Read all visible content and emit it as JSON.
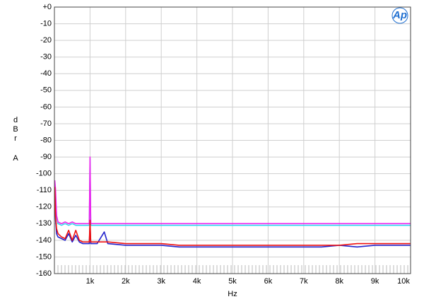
{
  "chart_data": {
    "type": "line",
    "ylabel": "dBr",
    "ylabel_unit": "A",
    "xlabel": "Hz",
    "logo": "Ap",
    "x": [
      10,
      30,
      60,
      100,
      200,
      300,
      400,
      500,
      600,
      700,
      800,
      900,
      980,
      1000,
      1020,
      1200,
      1400,
      1500,
      2000,
      2500,
      3000,
      3500,
      4000,
      4500,
      5000,
      5500,
      6000,
      6500,
      7000,
      7500,
      8000,
      8500,
      9000,
      9500,
      10000
    ],
    "series": [
      {
        "name": "cyan",
        "color": "#33d6f0",
        "values": [
          -106,
          -112,
          -126,
          -130,
          -131,
          -130,
          -131,
          -130,
          -131,
          -131,
          -131,
          -131,
          -131,
          -91,
          -131,
          -131,
          -131,
          -131,
          -131,
          -131,
          -131,
          -131,
          -131,
          -131,
          -131,
          -131,
          -131,
          -131,
          -131,
          -131,
          -131,
          -131,
          -131,
          -131,
          -131
        ]
      },
      {
        "name": "magenta",
        "color": "#ee22ee",
        "values": [
          -104,
          -109,
          -125,
          -129,
          -130,
          -129,
          -130,
          -129,
          -130,
          -130,
          -130,
          -130,
          -130,
          -90,
          -130,
          -130,
          -130,
          -130,
          -130,
          -130,
          -130,
          -130,
          -130,
          -130,
          -130,
          -130,
          -130,
          -130,
          -130,
          -130,
          -130,
          -130,
          -130,
          -130,
          -130
        ]
      },
      {
        "name": "blue",
        "color": "#2222cc",
        "values": [
          -110,
          -127,
          -136,
          -138,
          -139,
          -140,
          -136,
          -141,
          -137,
          -141,
          -142,
          -142,
          -142,
          -130,
          -142,
          -142,
          -135,
          -142,
          -143,
          -143,
          -143,
          -144,
          -144,
          -144,
          -144,
          -144,
          -144,
          -144,
          -144,
          -144,
          -143,
          -144,
          -143,
          -143,
          -143
        ]
      },
      {
        "name": "red",
        "color": "#ee1111",
        "values": [
          -108,
          -125,
          -133,
          -136,
          -138,
          -139,
          -134,
          -140,
          -134,
          -140,
          -141,
          -141,
          -141,
          -128,
          -141,
          -141,
          -141,
          -141,
          -142,
          -142,
          -142,
          -143,
          -143,
          -143,
          -143,
          -143,
          -143,
          -143,
          -143,
          -143,
          -143,
          -142,
          -142,
          -142,
          -142
        ]
      }
    ],
    "xlim": [
      0,
      10000
    ],
    "xticks": [
      {
        "value": 1000,
        "label": "1k"
      },
      {
        "value": 2000,
        "label": "2k"
      },
      {
        "value": 3000,
        "label": "3k"
      },
      {
        "value": 4000,
        "label": "4k"
      },
      {
        "value": 5000,
        "label": "5k"
      },
      {
        "value": 6000,
        "label": "6k"
      },
      {
        "value": 7000,
        "label": "7k"
      },
      {
        "value": 8000,
        "label": "8k"
      },
      {
        "value": 9000,
        "label": "9k"
      },
      {
        "value": 10000,
        "label": "10k"
      }
    ],
    "ylim": [
      -160,
      0
    ],
    "yticks": [
      {
        "value": 0,
        "label": "+0"
      },
      -10,
      -20,
      -30,
      -40,
      -50,
      -60,
      -70,
      -80,
      -90,
      -100,
      -110,
      -120,
      -130,
      -140,
      -150,
      -160
    ],
    "grid": true
  }
}
